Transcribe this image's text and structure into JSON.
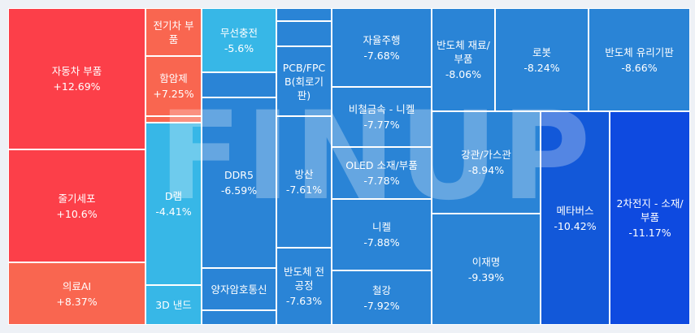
{
  "chart_data": {
    "type": "treemap",
    "watermark": "FINUP",
    "tiles": [
      {
        "name": "자동차 부품",
        "change": "+12.69%",
        "color": "#fc3f49"
      },
      {
        "name": "줄기세포",
        "change": "+10.6%",
        "color": "#fc3f49"
      },
      {
        "name": "의료AI",
        "change": "+8.37%",
        "color": "#f96650"
      },
      {
        "name": "전기차 부품",
        "change": "",
        "color": "#f96650"
      },
      {
        "name": "함암제",
        "change": "+7.25%",
        "color": "#f96650"
      },
      {
        "name": "D램",
        "change": "-4.41%",
        "color": "#37b7e7"
      },
      {
        "name": "3D 낸드",
        "change": "",
        "color": "#37b7e7"
      },
      {
        "name": "무선충전",
        "change": "-5.6%",
        "color": "#37b7e7"
      },
      {
        "name": "DDR5",
        "change": "-6.59%",
        "color": "#2a84d6"
      },
      {
        "name": "양자암호통신",
        "change": "",
        "color": "#2a84d6"
      },
      {
        "name": "PCB/FPCB(회로기판)",
        "change": "",
        "color": "#2a84d6"
      },
      {
        "name": "방산",
        "change": "-7.61%",
        "color": "#2a84d6"
      },
      {
        "name": "반도체 전공정",
        "change": "-7.63%",
        "color": "#2a84d6"
      },
      {
        "name": "자율주행",
        "change": "-7.68%",
        "color": "#2a84d6"
      },
      {
        "name": "비철금속 - 니켈",
        "change": "-7.77%",
        "color": "#2a84d6"
      },
      {
        "name": "OLED 소재/부품",
        "change": "-7.78%",
        "color": "#2a84d6"
      },
      {
        "name": "니켈",
        "change": "-7.88%",
        "color": "#2a84d6"
      },
      {
        "name": "철강",
        "change": "-7.92%",
        "color": "#2a84d6"
      },
      {
        "name": "반도체 재료/부품",
        "change": "-8.06%",
        "color": "#2a84d6"
      },
      {
        "name": "로봇",
        "change": "-8.24%",
        "color": "#2a84d6"
      },
      {
        "name": "반도체 유리기판",
        "change": "-8.66%",
        "color": "#2a84d6"
      },
      {
        "name": "강관/가스관",
        "change": "-8.94%",
        "color": "#2a84d6"
      },
      {
        "name": "이재명",
        "change": "-9.39%",
        "color": "#2a84d6"
      },
      {
        "name": "메타버스",
        "change": "-10.42%",
        "color": "#1258d9"
      },
      {
        "name": "2차전지 - 소재/부품",
        "change": "-11.17%",
        "color": "#0e4ae0"
      },
      {
        "name": "",
        "change": "",
        "color": "#f96650"
      },
      {
        "name": "",
        "change": "",
        "color": "#37b7e7"
      },
      {
        "name": "",
        "change": "",
        "color": "#2a84d6"
      },
      {
        "name": "",
        "change": "",
        "color": "#2a84d6"
      },
      {
        "name": "",
        "change": "",
        "color": "#2a84d6"
      },
      {
        "name": "",
        "change": "",
        "color": "#2a84d6"
      },
      {
        "name": "",
        "change": "",
        "color": "#2a84d6"
      },
      {
        "name": "",
        "change": "",
        "color": "#2a84d6"
      }
    ]
  }
}
